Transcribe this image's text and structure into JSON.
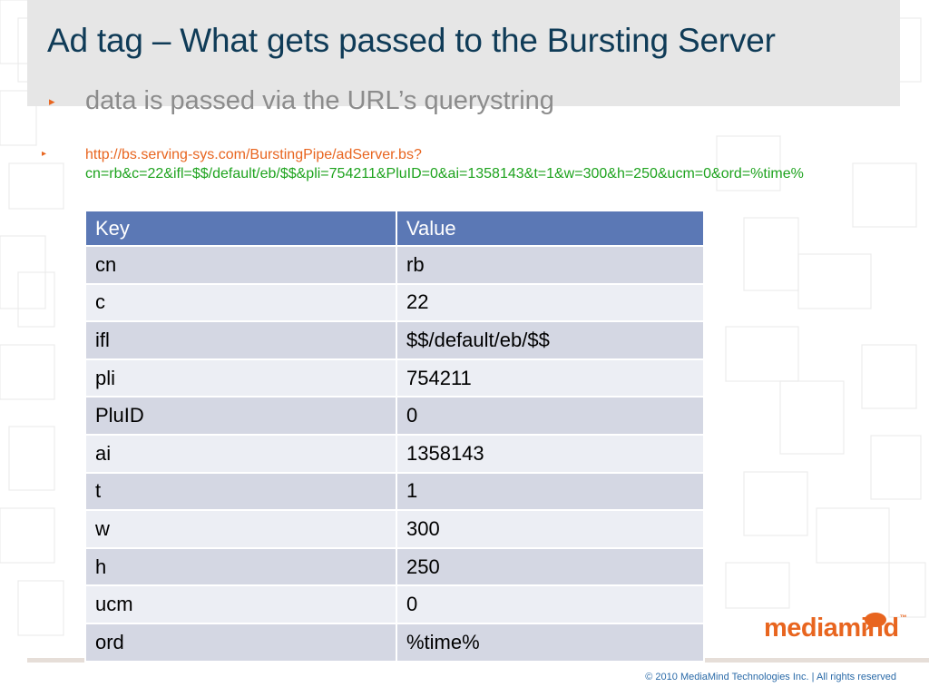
{
  "slide": {
    "title": "Ad tag – What gets passed to the Bursting Server",
    "bullet1": "data is passed via the URL’s querystring",
    "bullet2_url_host": "http://bs.serving-sys.com/BurstingPipe/adServer.bs?",
    "bullet2_url_query": "cn=rb&c=22&ifl=$$/default/eb/$$&pli=754211&PluID=0&ai=1358143&t=1&w=300&h=250&ucm=0&ord=%time%"
  },
  "table": {
    "headers": {
      "key": "Key",
      "value": "Value"
    },
    "rows": [
      {
        "key": "cn",
        "value": "rb"
      },
      {
        "key": "c",
        "value": "22"
      },
      {
        "key": "ifl",
        "value": "$$/default/eb/$$"
      },
      {
        "key": "pli",
        "value": "754211"
      },
      {
        "key": "PluID",
        "value": "0"
      },
      {
        "key": "ai",
        "value": "1358143"
      },
      {
        "key": "t",
        "value": "1"
      },
      {
        "key": "w",
        "value": "300"
      },
      {
        "key": "h",
        "value": "250"
      },
      {
        "key": "ucm",
        "value": "0"
      },
      {
        "key": "ord",
        "value": "%time%"
      }
    ]
  },
  "footer": {
    "logo_text": "mediamind",
    "logo_tm": "™",
    "copyright": "© 2010 MediaMind Technologies Inc. | All rights reserved"
  },
  "colors": {
    "title": "#0f3b57",
    "accent": "#e8651f",
    "query_green": "#1ea31e",
    "table_header": "#5b78b5",
    "row_odd": "#d4d7e3",
    "row_even": "#eceef4"
  },
  "icons": {
    "bullet": "triangle-right-icon",
    "logo": "speech-bubble-icon"
  }
}
